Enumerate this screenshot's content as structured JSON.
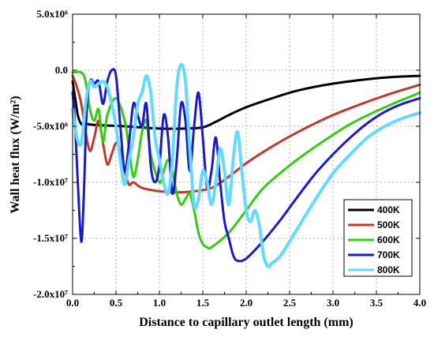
{
  "chart_data": {
    "type": "line",
    "xlabel": "Distance to capillary outlet length (mm)",
    "ylabel": "Wall heat flux (W/m²)",
    "xlim": [
      0,
      4
    ],
    "ylim": [
      -20000000,
      5000000
    ],
    "xticks": [
      "0.0",
      "0.5",
      "1.0",
      "1.5",
      "2.0",
      "2.5",
      "3.0",
      "3.5",
      "4.0"
    ],
    "yticks": [
      {
        "value": 5000000,
        "label": "5.0x10⁶"
      },
      {
        "value": 0,
        "label": "0.0"
      },
      {
        "value": -5000000,
        "label": "-5.0x10⁶"
      },
      {
        "value": -10000000,
        "label": "-1.0x10⁷"
      },
      {
        "value": -15000000,
        "label": "-1.5x10⁷"
      },
      {
        "value": -20000000,
        "label": "-2.0x10⁷"
      }
    ],
    "grid": true,
    "legend_position": "bottom-right",
    "series": [
      {
        "name": "400K",
        "color": "#000000",
        "width": 3,
        "x": [
          0,
          0.03,
          0.06,
          0.1,
          0.15,
          0.3,
          0.6,
          1.0,
          1.3,
          1.5,
          1.65,
          1.8,
          2.0,
          2.3,
          2.6,
          3.0,
          3.4,
          3.7,
          4.0
        ],
        "y": [
          -1000000,
          -2500000,
          -4000000,
          -4800000,
          -4800000,
          -4900000,
          -5000000,
          -5200000,
          -5200000,
          -5100000,
          -4600000,
          -4000000,
          -3300000,
          -2500000,
          -1800000,
          -1200000,
          -800000,
          -600000,
          -500000
        ]
      },
      {
        "name": "500K",
        "color": "#c0392b",
        "width": 3,
        "x": [
          0,
          0.05,
          0.1,
          0.15,
          0.2,
          0.25,
          0.3,
          0.35,
          0.4,
          0.45,
          0.5,
          0.55,
          0.6,
          0.65,
          0.7,
          0.8,
          1.0,
          1.2,
          1.4,
          1.6,
          1.8,
          2.0,
          2.3,
          2.6,
          3.0,
          3.4,
          3.7,
          4.0
        ],
        "y": [
          -500000,
          -1500000,
          -3000000,
          -5500000,
          -7200000,
          -6000000,
          -4500000,
          -6500000,
          -8400000,
          -7500000,
          -6500000,
          -7200000,
          -9000000,
          -10200000,
          -10000000,
          -10500000,
          -10800000,
          -10900000,
          -10800000,
          -10500000,
          -9500000,
          -8300000,
          -6800000,
          -5500000,
          -4000000,
          -2800000,
          -2000000,
          -1300000
        ]
      },
      {
        "name": "600K",
        "color": "#33cc11",
        "width": 3,
        "x": [
          0,
          0.1,
          0.15,
          0.2,
          0.25,
          0.3,
          0.35,
          0.4,
          0.5,
          0.6,
          0.65,
          0.7,
          0.75,
          0.8,
          0.85,
          0.9,
          1.0,
          1.05,
          1.1,
          1.15,
          1.2,
          1.25,
          1.3,
          1.35,
          1.4,
          1.45,
          1.5,
          1.55,
          1.6,
          1.8,
          2.0,
          2.2,
          2.5,
          2.8,
          3.2,
          3.6,
          4.0
        ],
        "y": [
          -200000,
          -200000,
          -1000000,
          -3500000,
          -4500000,
          -3500000,
          -6400000,
          -4000000,
          -2500000,
          -4500000,
          -7000000,
          -9500000,
          -8000000,
          -5500000,
          -4500000,
          -7500000,
          -10000000,
          -9000000,
          -8000000,
          -9000000,
          -11000000,
          -12000000,
          -11500000,
          -11000000,
          -12500000,
          -14500000,
          -15500000,
          -15800000,
          -15800000,
          -14500000,
          -12500000,
          -10500000,
          -8500000,
          -6800000,
          -4800000,
          -3300000,
          -2000000
        ]
      },
      {
        "name": "700K",
        "color": "#1a1acc",
        "width": 3,
        "x": [
          0,
          0.03,
          0.06,
          0.1,
          0.13,
          0.16,
          0.2,
          0.25,
          0.3,
          0.35,
          0.4,
          0.45,
          0.5,
          0.55,
          0.6,
          0.65,
          0.7,
          0.75,
          0.8,
          0.85,
          0.9,
          0.95,
          1.0,
          1.05,
          1.1,
          1.15,
          1.2,
          1.25,
          1.3,
          1.35,
          1.4,
          1.45,
          1.5,
          1.55,
          1.6,
          1.65,
          1.7,
          1.75,
          1.8,
          1.85,
          1.9,
          2.0,
          2.2,
          2.4,
          2.6,
          2.8,
          3.0,
          3.2,
          3.4,
          3.6,
          3.8,
          4.0
        ],
        "y": [
          -2000000,
          -5000000,
          -10000000,
          -15300000,
          -11000000,
          -4000000,
          -1000000,
          -1200000,
          -1000000,
          -3000000,
          -1000000,
          0,
          -500000,
          -5000000,
          -9000000,
          -6500000,
          -3000000,
          -4000000,
          -5000000,
          -3000000,
          -8500000,
          -10000000,
          -8500000,
          -4000000,
          -6000000,
          -11000000,
          -8000000,
          -3000000,
          -4500000,
          -9000000,
          -5000000,
          -2000000,
          -6000000,
          -10500000,
          -9000000,
          -6000000,
          -10000000,
          -13500000,
          -15000000,
          -16500000,
          -17000000,
          -16800000,
          -15200000,
          -13300000,
          -11200000,
          -9200000,
          -7500000,
          -6000000,
          -4700000,
          -3700000,
          -3000000,
          -2500000
        ]
      },
      {
        "name": "800K",
        "color": "#66d9ff",
        "width": 4,
        "x": [
          0,
          0.05,
          0.1,
          0.15,
          0.2,
          0.25,
          0.3,
          0.35,
          0.4,
          0.45,
          0.5,
          0.55,
          0.6,
          0.65,
          0.7,
          0.75,
          0.8,
          0.85,
          0.9,
          0.95,
          1.0,
          1.05,
          1.1,
          1.15,
          1.2,
          1.25,
          1.3,
          1.35,
          1.4,
          1.45,
          1.5,
          1.55,
          1.6,
          1.65,
          1.7,
          1.75,
          1.8,
          1.85,
          1.9,
          1.95,
          2.0,
          2.05,
          2.1,
          2.15,
          2.2,
          2.25,
          2.3,
          2.4,
          2.6,
          2.8,
          3.0,
          3.2,
          3.4,
          3.6,
          3.8,
          4.0
        ],
        "y": [
          -3500000,
          -6000000,
          -6500000,
          -3000000,
          -1000000,
          -1500000,
          -1200000,
          -1000000,
          -1500000,
          -3000000,
          -5000000,
          -8000000,
          -10200000,
          -8000000,
          -6000000,
          -3000000,
          -2000000,
          -500000,
          -2000000,
          -6000000,
          -8000000,
          -10000000,
          -11000000,
          -8000000,
          -1500000,
          500000,
          -1000000,
          -7000000,
          -12000000,
          -11500000,
          -9000000,
          -10000000,
          -12000000,
          -10000000,
          -7000000,
          -9000000,
          -12000000,
          -8000000,
          -5500000,
          -9000000,
          -12500000,
          -13500000,
          -12500000,
          -13800000,
          -16500000,
          -17500000,
          -17200000,
          -16500000,
          -14000000,
          -11500000,
          -9200000,
          -7500000,
          -6000000,
          -5000000,
          -4300000,
          -3800000
        ]
      }
    ]
  }
}
